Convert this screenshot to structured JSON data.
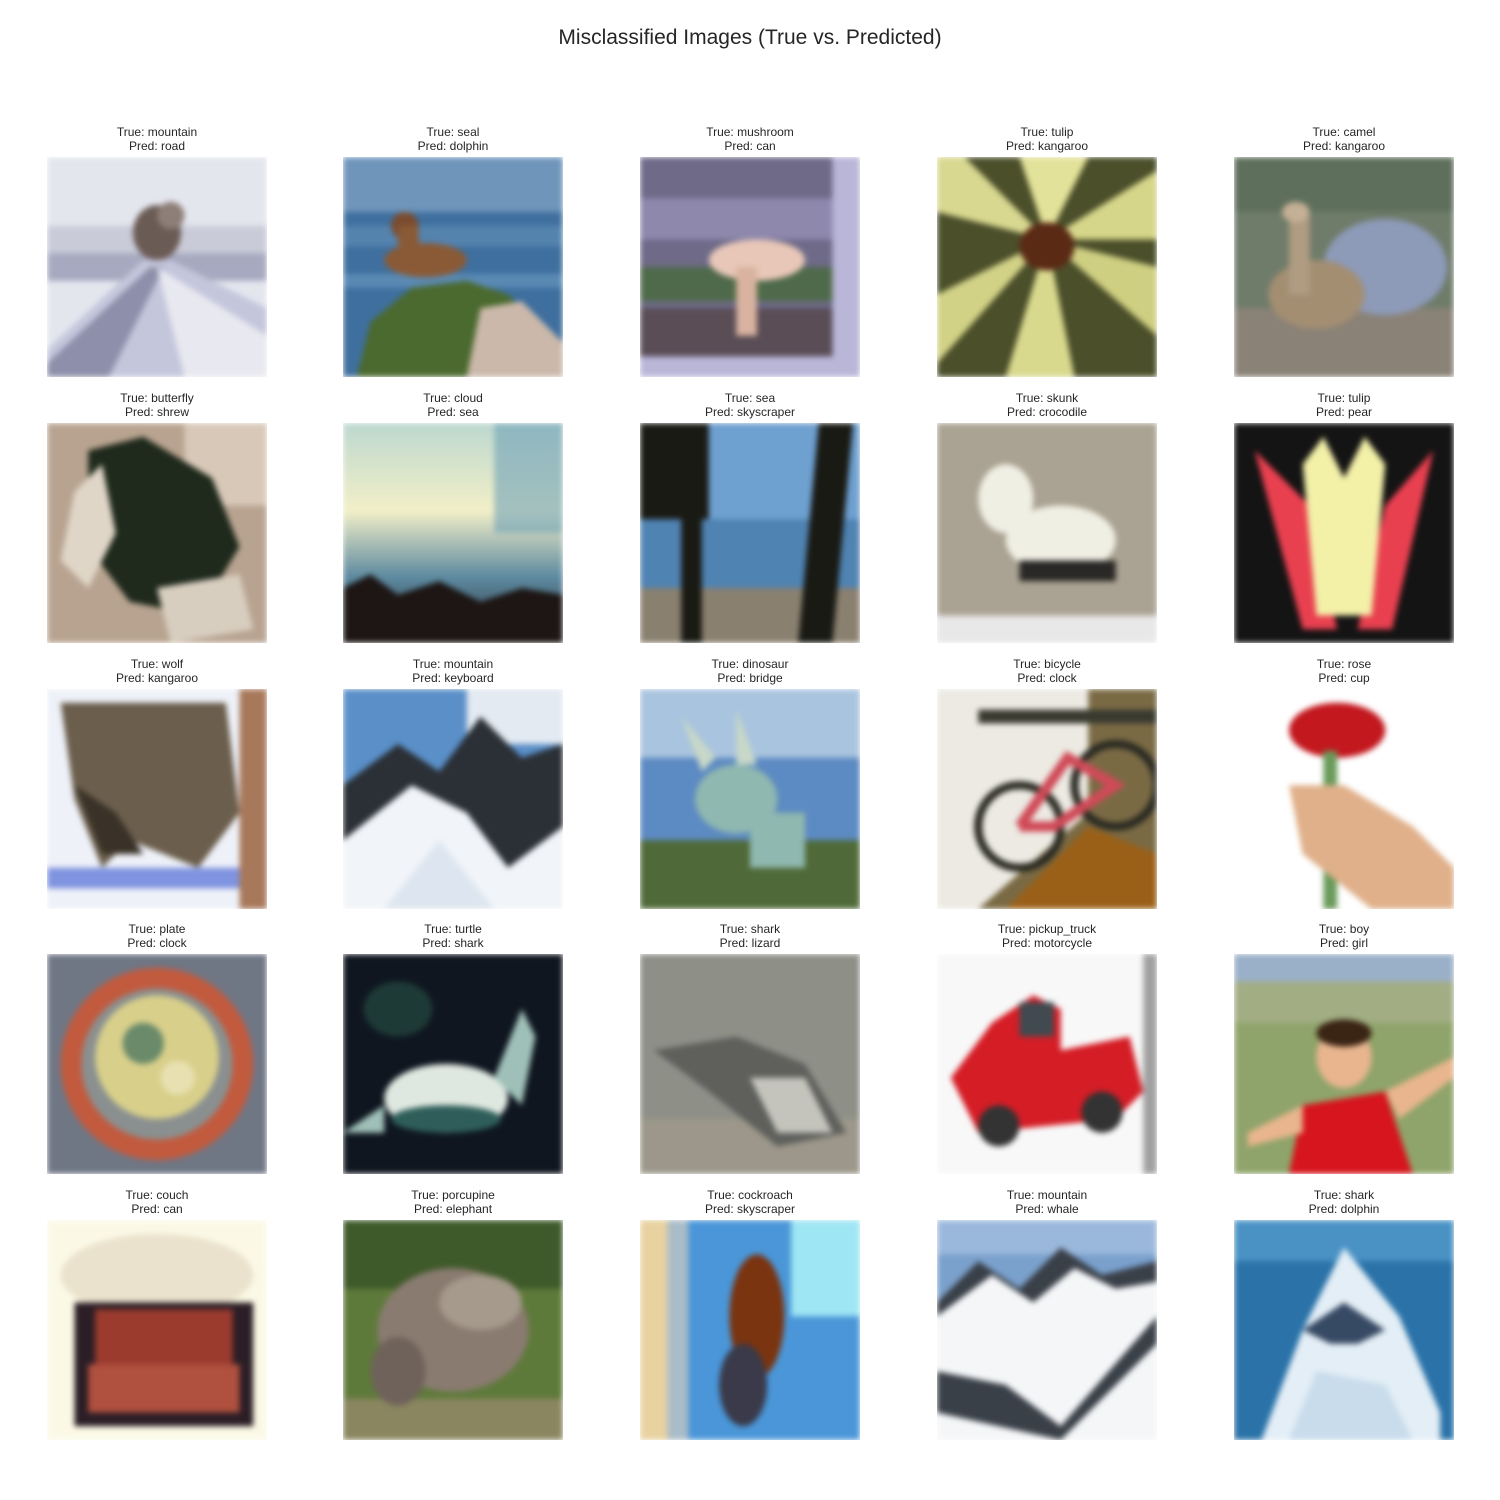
{
  "figure": {
    "title": "Misclassified Images (True vs. Predicted)"
  },
  "rows": [
    [
      {
        "true_label": "True: mountain",
        "pred_label": "Pred: road",
        "subject": "volcano-road",
        "palette": [
          "#e6e8ee",
          "#8e90ab",
          "#6b5b55"
        ]
      },
      {
        "true_label": "True: seal",
        "pred_label": "Pred: dolphin",
        "subject": "seal-on-rock",
        "palette": [
          "#3f6f9e",
          "#4b6a2f",
          "#8a5a36"
        ]
      },
      {
        "true_label": "True: mushroom",
        "pred_label": "Pred: can",
        "subject": "mushroom-card",
        "palette": [
          "#8a7f9c",
          "#e8c7b8",
          "#3b3a4a"
        ]
      },
      {
        "true_label": "True: tulip",
        "pred_label": "Pred: kangaroo",
        "subject": "yellow-lily",
        "palette": [
          "#d8d890",
          "#5a2a15",
          "#4b4f2a"
        ]
      },
      {
        "true_label": "True: camel",
        "pred_label": "Pred: kangaroo",
        "subject": "camel-zoo",
        "palette": [
          "#6f7c6a",
          "#8d9ab8",
          "#a38e72"
        ]
      }
    ],
    [
      {
        "true_label": "True: butterfly",
        "pred_label": "Pred: shrew",
        "subject": "dark-butterfly",
        "palette": [
          "#b8a390",
          "#1f2a1c",
          "#e0d6c8"
        ]
      },
      {
        "true_label": "True: cloud",
        "pred_label": "Pred: sea",
        "subject": "sky-horizon",
        "palette": [
          "#f2efc8",
          "#5d8aa0",
          "#1d1614"
        ]
      },
      {
        "true_label": "True: sea",
        "pred_label": "Pred: skyscraper",
        "subject": "sea-trees",
        "palette": [
          "#4f83b2",
          "#1a1a14",
          "#8a8070"
        ]
      },
      {
        "true_label": "True: skunk",
        "pred_label": "Pred: crocodile",
        "subject": "white-skunk",
        "palette": [
          "#aaa292",
          "#f0efe4",
          "#2a2826"
        ]
      },
      {
        "true_label": "True: tulip",
        "pred_label": "Pred: pear",
        "subject": "red-yellow-tulip",
        "palette": [
          "#141414",
          "#e94050",
          "#f3f0a8"
        ]
      }
    ],
    [
      {
        "true_label": "True: wolf",
        "pred_label": "Pred: kangaroo",
        "subject": "wolf-snow",
        "palette": [
          "#eef1f8",
          "#6b5e4c",
          "#7f93e0"
        ]
      },
      {
        "true_label": "True: mountain",
        "pred_label": "Pred: keyboard",
        "subject": "snowy-peaks",
        "palette": [
          "#5a8fc8",
          "#f1f4f8",
          "#2b3036"
        ]
      },
      {
        "true_label": "True: dinosaur",
        "pred_label": "Pred: bridge",
        "subject": "dinosaur-statue",
        "palette": [
          "#5c8ac2",
          "#8fb8b0",
          "#4f6a38"
        ]
      },
      {
        "true_label": "True: bicycle",
        "pred_label": "Pred: clock",
        "subject": "red-bicycle",
        "palette": [
          "#eceae2",
          "#9a6018",
          "#d04a58"
        ]
      },
      {
        "true_label": "True: rose",
        "pred_label": "Pred: cup",
        "subject": "hand-rose",
        "palette": [
          "#ffffff",
          "#c2181e",
          "#e0b08a"
        ]
      }
    ],
    [
      {
        "true_label": "True: plate",
        "pred_label": "Pred: clock",
        "subject": "decorated-plate",
        "palette": [
          "#6f7684",
          "#c25a3e",
          "#d8cf8a"
        ]
      },
      {
        "true_label": "True: turtle",
        "pred_label": "Pred: shark",
        "subject": "sea-turtle",
        "palette": [
          "#0f1620",
          "#dfe8e0",
          "#2f5e5a"
        ]
      },
      {
        "true_label": "True: shark",
        "pred_label": "Pred: lizard",
        "subject": "grey-shark",
        "palette": [
          "#8e9088",
          "#5f605c",
          "#c4c4bc"
        ]
      },
      {
        "true_label": "True: pickup_truck",
        "pred_label": "Pred: motorcycle",
        "subject": "red-truck",
        "palette": [
          "#f8f8f8",
          "#d51d26",
          "#333333"
        ]
      },
      {
        "true_label": "True: boy",
        "pred_label": "Pred: girl",
        "subject": "boy-grass",
        "palette": [
          "#8fa46a",
          "#d6151e",
          "#e9b58e"
        ]
      }
    ],
    [
      {
        "true_label": "True: couch",
        "pred_label": "Pred: can",
        "subject": "red-armchair",
        "palette": [
          "#fbf9e6",
          "#9a3b2e",
          "#2c1e26"
        ]
      },
      {
        "true_label": "True: porcupine",
        "pred_label": "Pred: elephant",
        "subject": "porcupine-grass",
        "palette": [
          "#5e7a3a",
          "#8a7b70",
          "#a59a8c"
        ]
      },
      {
        "true_label": "True: cockroach",
        "pred_label": "Pred: skyscraper",
        "subject": "cockroach-blue",
        "palette": [
          "#4a96d8",
          "#7a3410",
          "#e8d2a0"
        ]
      },
      {
        "true_label": "True: mountain",
        "pred_label": "Pred: whale",
        "subject": "alps-snow",
        "palette": [
          "#7aa0cc",
          "#f4f6f8",
          "#3a4048"
        ]
      },
      {
        "true_label": "True: shark",
        "pred_label": "Pred: dolphin",
        "subject": "great-white-shark",
        "palette": [
          "#2a72a8",
          "#e3eef6",
          "#374a64"
        ]
      }
    ]
  ]
}
